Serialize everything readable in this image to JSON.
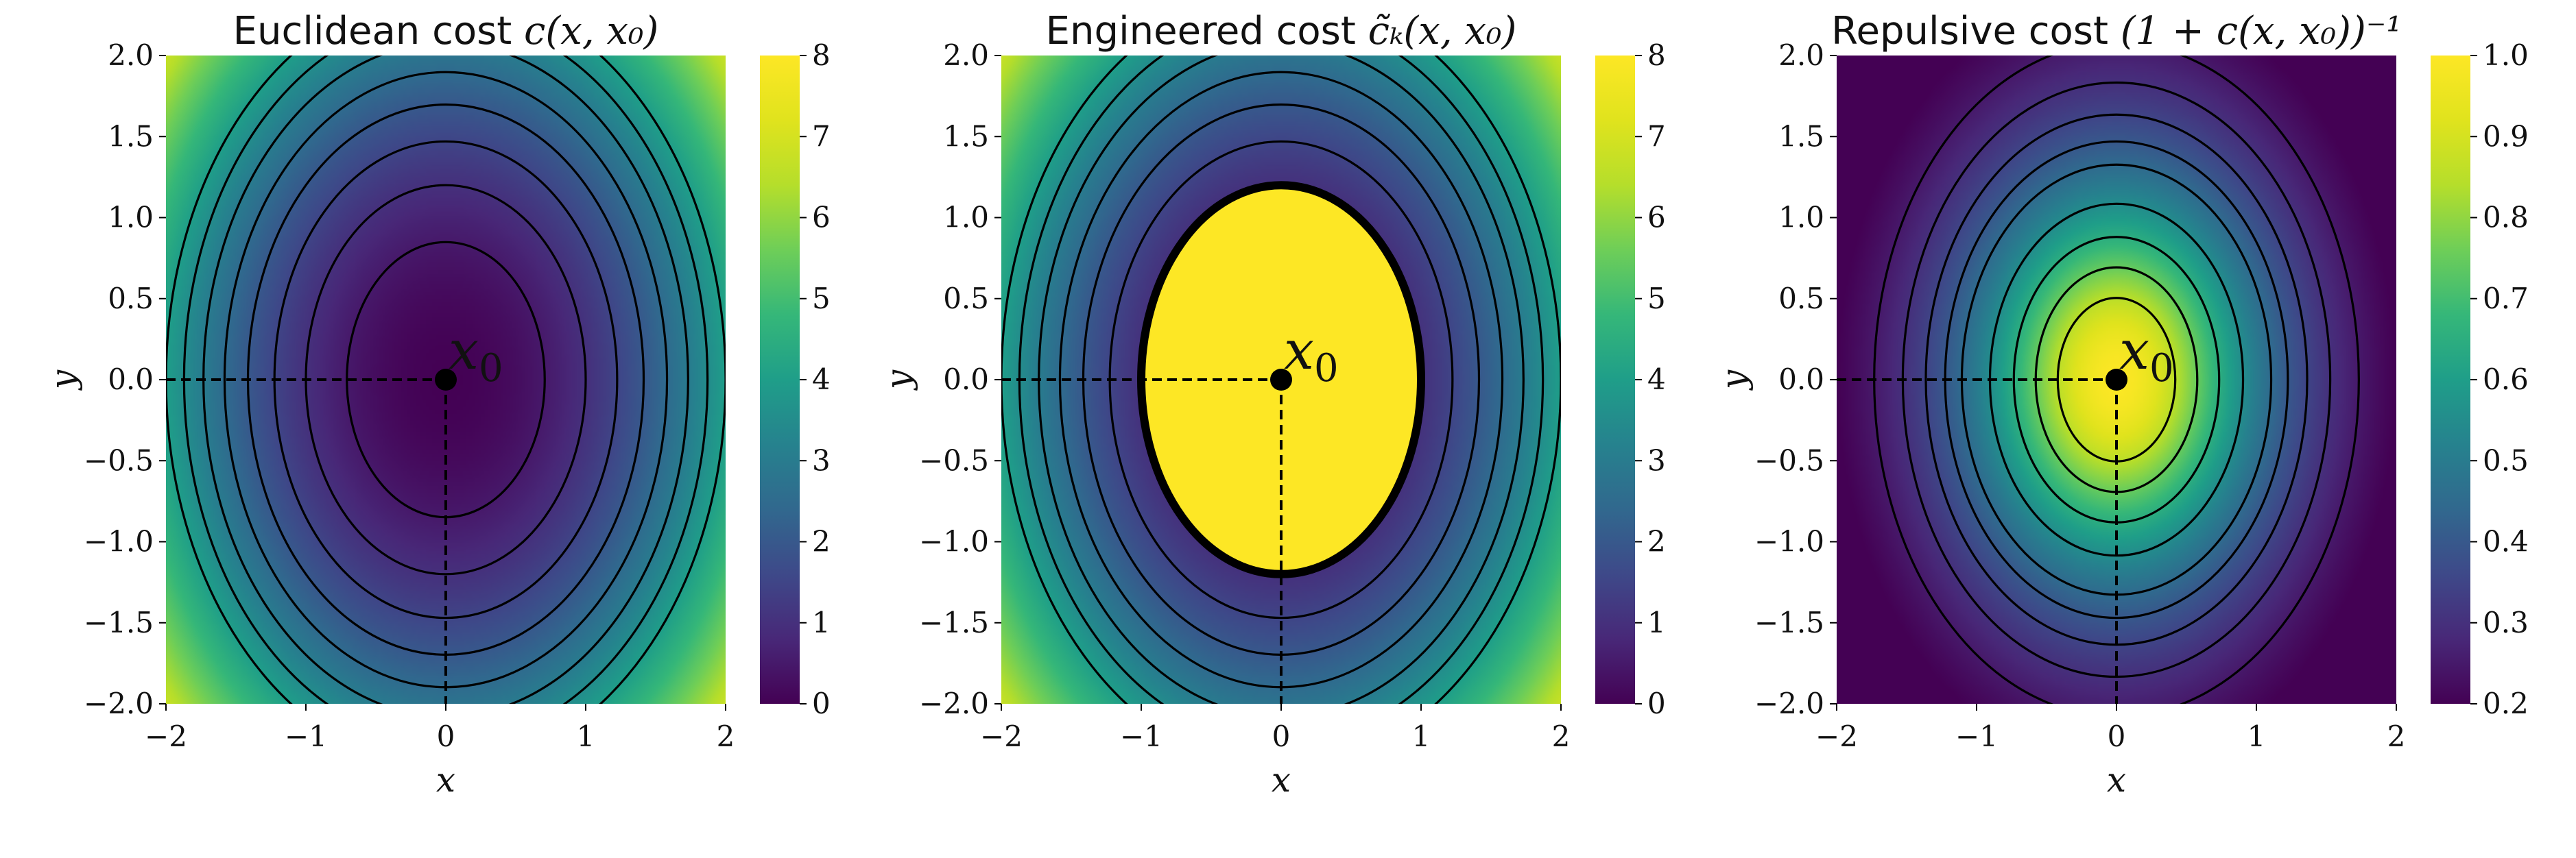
{
  "chart_data": [
    {
      "type": "heatmap",
      "title_prefix": "Euclidean cost",
      "title_math": "c(x, x₀)",
      "xlabel": "x",
      "ylabel": "y",
      "xlim": [
        -2,
        2
      ],
      "ylim": [
        -2,
        2
      ],
      "xticks": [
        "−2",
        "−1",
        "0",
        "1",
        "2"
      ],
      "yticks": [
        "2.0",
        "1.5",
        "1.0",
        "0.5",
        "0.0",
        "−0.5",
        "−1.0",
        "−1.5",
        "−2.0"
      ],
      "colorbar": {
        "min": 0,
        "max": 8,
        "ticks": [
          "8",
          "7",
          "6",
          "5",
          "4",
          "3",
          "2",
          "1",
          "0"
        ]
      },
      "contour_levels": [
        0.5,
        1,
        1.5,
        2,
        2.5,
        3,
        3.5,
        4
      ],
      "point": {
        "x": 0,
        "y": 0,
        "label": "x0"
      },
      "mode": "euclid"
    },
    {
      "type": "heatmap",
      "title_prefix": "Engineered cost",
      "title_math": "c̃ₖ(x, x₀)",
      "xlabel": "x",
      "ylabel": "y",
      "xlim": [
        -2,
        2
      ],
      "ylim": [
        -2,
        2
      ],
      "xticks": [
        "−2",
        "−1",
        "0",
        "1",
        "2"
      ],
      "yticks": [
        "2.0",
        "1.5",
        "1.0",
        "0.5",
        "0.0",
        "−0.5",
        "−1.0",
        "−1.5",
        "−2.0"
      ],
      "colorbar": {
        "min": 0,
        "max": 8,
        "ticks": [
          "8",
          "7",
          "6",
          "5",
          "4",
          "3",
          "2",
          "1",
          "0"
        ]
      },
      "contour_levels": [
        1,
        1.5,
        2,
        2.5,
        3,
        3.5,
        4
      ],
      "saturated_region_level": 1,
      "point": {
        "x": 0,
        "y": 0,
        "label": "x0"
      },
      "mode": "engineered"
    },
    {
      "type": "heatmap",
      "title_prefix": "Repulsive cost",
      "title_math": "(1 + c(x, x₀))⁻¹",
      "xlabel": "x",
      "ylabel": "y",
      "xlim": [
        -2,
        2
      ],
      "ylim": [
        -2,
        2
      ],
      "xticks": [
        "−2",
        "−1",
        "0",
        "1",
        "2"
      ],
      "yticks": [
        "2.0",
        "1.5",
        "1.0",
        "0.5",
        "0.0",
        "−0.5",
        "−1.0",
        "−1.5",
        "−2.0"
      ],
      "colorbar": {
        "min": 0.2,
        "max": 1.0,
        "ticks": [
          "1.0",
          "0.9",
          "0.8",
          "0.7",
          "0.6",
          "0.5",
          "0.4",
          "0.3",
          "0.2"
        ]
      },
      "contour_levels": [
        0.85,
        0.75,
        0.65,
        0.55,
        0.45,
        0.4,
        0.35,
        0.3,
        0.25
      ],
      "point": {
        "x": 0,
        "y": 0,
        "label": "x0"
      },
      "mode": "repulsive"
    }
  ]
}
